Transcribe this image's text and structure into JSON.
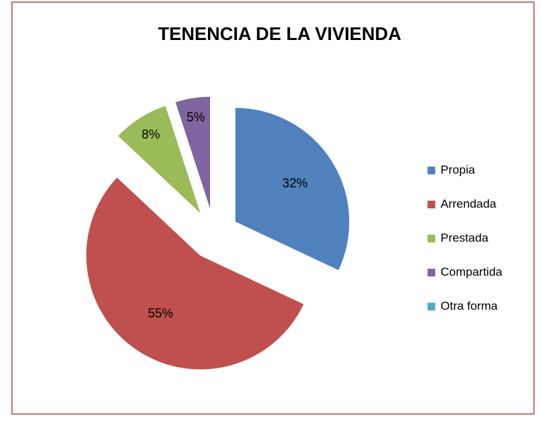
{
  "chart_data": {
    "type": "pie",
    "title": "TENENCIA DE LA VIVIENDA",
    "categories": [
      "Propia",
      "Arrendada",
      "Prestada",
      "Compartida",
      "Otra forma"
    ],
    "values": [
      32,
      55,
      8,
      5,
      0
    ],
    "value_labels": [
      "32%",
      "55%",
      "8%",
      "5%",
      null
    ],
    "colors": [
      "#4f81bd",
      "#c0504d",
      "#9bbb59",
      "#8064a2",
      "#4bacc6"
    ],
    "legend": "right"
  }
}
